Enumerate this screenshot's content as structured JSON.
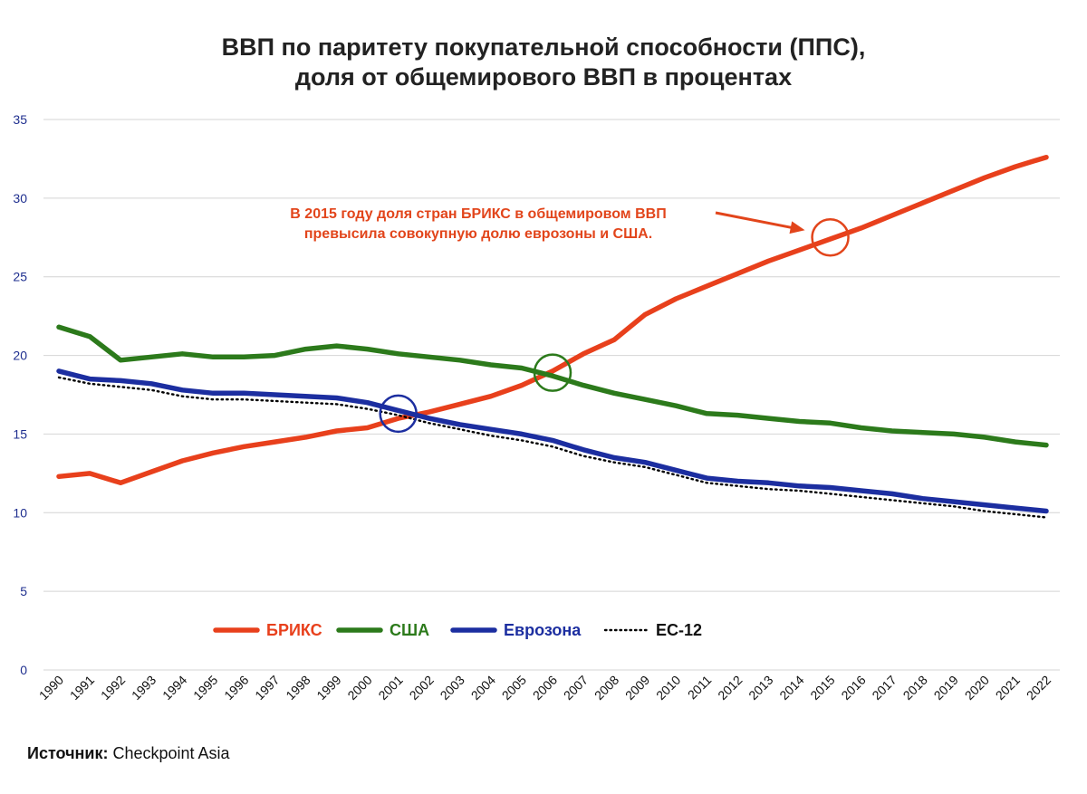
{
  "chart_data": {
    "type": "line",
    "title": "ВВП по паритету покупательной способности (ППС),",
    "subtitle": "доля от общемирового ВВП в процентах",
    "x": [
      "1990",
      "1991",
      "1992",
      "1993",
      "1994",
      "1995",
      "1996",
      "1997",
      "1998",
      "1999",
      "2000",
      "2001",
      "2002",
      "2003",
      "2004",
      "2005",
      "2006",
      "2007",
      "2008",
      "2009",
      "2010",
      "2011",
      "2012",
      "2013",
      "2014",
      "2015",
      "2016",
      "2017",
      "2018",
      "2019",
      "2020",
      "2021",
      "2022"
    ],
    "yticks": [
      "0",
      "5",
      "10",
      "15",
      "20",
      "25",
      "30",
      "35"
    ],
    "ylim": [
      0,
      35
    ],
    "grid": true,
    "legend_position": "bottom-left",
    "series": [
      {
        "name": "БРИКС",
        "color": "#e8401c",
        "style": "solid",
        "values": [
          12.3,
          12.5,
          11.9,
          12.6,
          13.3,
          13.8,
          14.2,
          14.5,
          14.8,
          15.2,
          15.4,
          16.0,
          16.4,
          16.9,
          17.4,
          18.1,
          19.0,
          20.1,
          21.0,
          22.6,
          23.6,
          24.4,
          25.2,
          26.0,
          26.7,
          27.4,
          28.1,
          28.9,
          29.7,
          30.5,
          31.3,
          32.0,
          32.6
        ]
      },
      {
        "name": "США",
        "color": "#2c7a1b",
        "style": "solid",
        "values": [
          21.8,
          21.2,
          19.7,
          19.9,
          20.1,
          19.9,
          19.9,
          20.0,
          20.4,
          20.6,
          20.4,
          20.1,
          19.9,
          19.7,
          19.4,
          19.2,
          18.7,
          18.1,
          17.6,
          17.2,
          16.8,
          16.3,
          16.2,
          16.0,
          15.8,
          15.7,
          15.4,
          15.2,
          15.1,
          15.0,
          14.8,
          14.5,
          14.3
        ]
      },
      {
        "name": "Еврозона",
        "color": "#1c2ea0",
        "style": "solid",
        "values": [
          19.0,
          18.5,
          18.4,
          18.2,
          17.8,
          17.6,
          17.6,
          17.5,
          17.4,
          17.3,
          17.0,
          16.5,
          16.0,
          15.6,
          15.3,
          15.0,
          14.6,
          14.0,
          13.5,
          13.2,
          12.7,
          12.2,
          12.0,
          11.9,
          11.7,
          11.6,
          11.4,
          11.2,
          10.9,
          10.7,
          10.5,
          10.3,
          10.1
        ]
      },
      {
        "name": "ЕС-12",
        "color": "#000000",
        "style": "dotted",
        "values": [
          18.6,
          18.2,
          18.0,
          17.8,
          17.4,
          17.2,
          17.2,
          17.1,
          17.0,
          16.9,
          16.6,
          16.2,
          15.7,
          15.3,
          14.9,
          14.6,
          14.2,
          13.6,
          13.2,
          12.9,
          12.4,
          11.9,
          11.7,
          11.5,
          11.4,
          11.2,
          11.0,
          10.8,
          10.6,
          10.4,
          10.1,
          9.9,
          9.7
        ]
      }
    ],
    "annotation": {
      "line1": "В 2015 году доля стран БРИКС в общемировом ВВП",
      "line2": "превысила совокупную долю еврозоны и США.",
      "color": "#e2451b"
    },
    "highlights": [
      {
        "x": "2001",
        "y": 16.3,
        "color": "#1c2ea0"
      },
      {
        "x": "2006",
        "y": 18.9,
        "color": "#2c7a1b"
      },
      {
        "x": "2015",
        "y": 27.5,
        "color": "#e2451b"
      }
    ]
  },
  "source": {
    "label": "Источник:",
    "value": "Checkpoint Asia"
  }
}
